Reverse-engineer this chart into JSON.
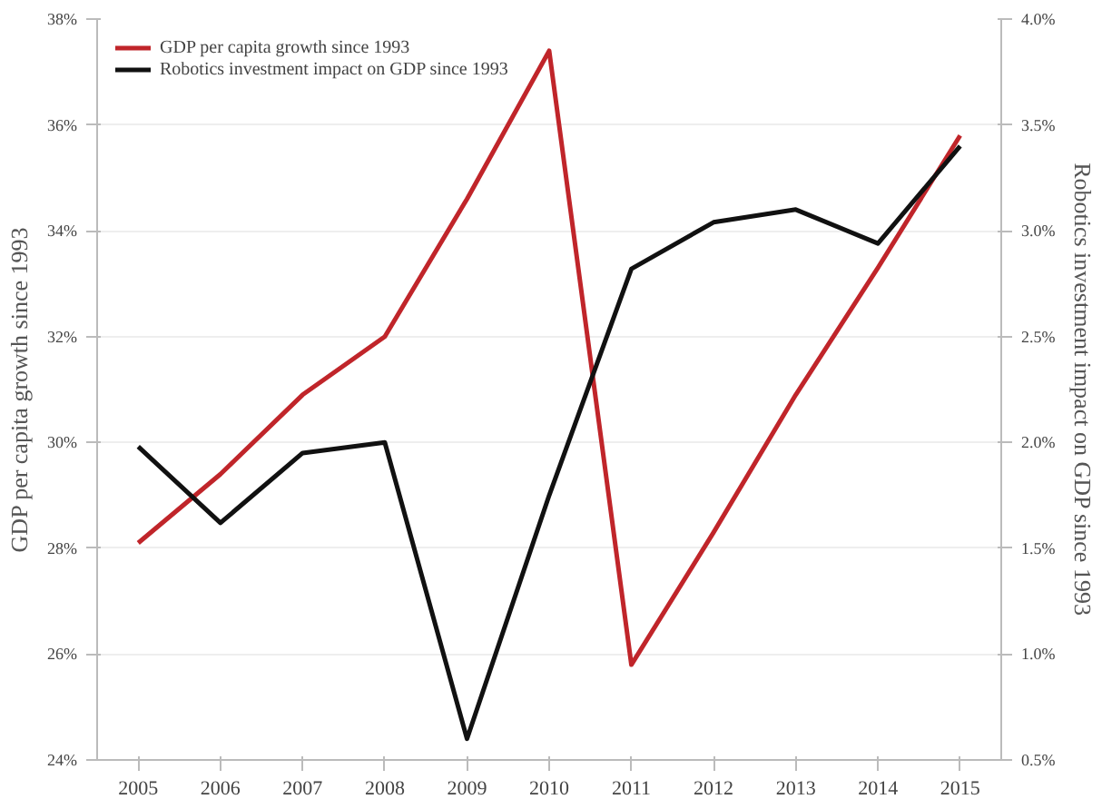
{
  "chart_data": {
    "type": "line",
    "ylabel": "GDP per capita growth since 1993",
    "y2label": "Robotics investment impact on GDP since 1993",
    "x": [
      2005,
      2006,
      2007,
      2008,
      2009,
      2010,
      2011,
      2012,
      2013,
      2014,
      2015
    ],
    "xlim": [
      2004.5,
      2015.5
    ],
    "xticks": [
      2005,
      2006,
      2007,
      2008,
      2009,
      2010,
      2011,
      2012,
      2013,
      2014,
      2015
    ],
    "ylim": [
      24,
      38
    ],
    "yticks": [
      {
        "value": 24,
        "label": "24%"
      },
      {
        "value": 26,
        "label": "26%"
      },
      {
        "value": 28,
        "label": "28%"
      },
      {
        "value": 30,
        "label": "30%"
      },
      {
        "value": 32,
        "label": "32%"
      },
      {
        "value": 34,
        "label": "34%"
      },
      {
        "value": 36,
        "label": "36%"
      },
      {
        "value": 38,
        "label": "38%"
      }
    ],
    "y2lim": [
      0.5,
      4.0
    ],
    "y2ticks": [
      {
        "value": 0.5,
        "label": "0.5%"
      },
      {
        "value": 1.0,
        "label": "1.0%"
      },
      {
        "value": 1.5,
        "label": "1.5%"
      },
      {
        "value": 2.0,
        "label": "2.0%"
      },
      {
        "value": 2.5,
        "label": "2.5%"
      },
      {
        "value": 3.0,
        "label": "3.0%"
      },
      {
        "value": 3.5,
        "label": "3.5%"
      },
      {
        "value": 4.0,
        "label": "4.0%"
      }
    ],
    "series": [
      {
        "name": "GDP per capita growth since 1993",
        "color": "#c0252a",
        "values": [
          28.1,
          29.4,
          30.9,
          32.0,
          34.6,
          37.4,
          25.8,
          28.3,
          30.9,
          33.3,
          35.8
        ]
      },
      {
        "name": "Robotics investment impact on GDP since 1993",
        "color": "#111111",
        "axis": "y2",
        "values": [
          1.98,
          1.62,
          1.95,
          2.0,
          0.6,
          1.75,
          2.82,
          3.04,
          3.1,
          2.94,
          3.4
        ]
      }
    ],
    "grid": "y",
    "legend": "top left"
  }
}
